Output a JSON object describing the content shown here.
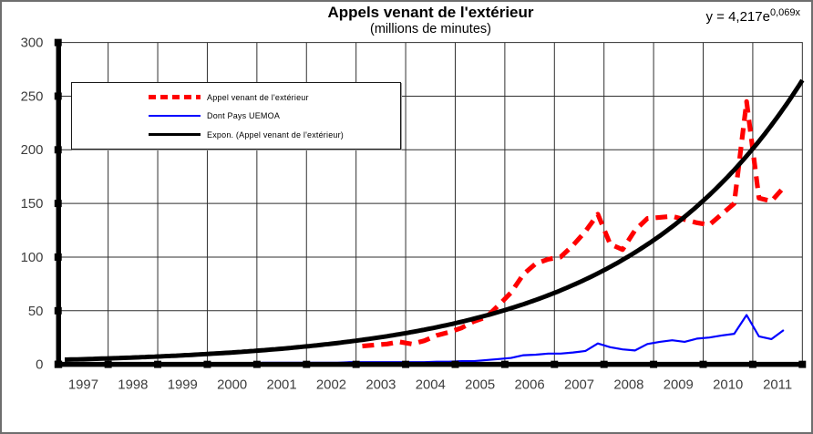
{
  "frame": {
    "border_color": "#6e6e6e",
    "background_color": "#ffffff",
    "grid_color": "#2f2f2f",
    "tick_label_color": "#3d3d3d"
  },
  "header": {
    "title": "Appels venant de l'extérieur",
    "subtitle": "(millions de minutes)",
    "trendline_equation_base": "y = 4,217e",
    "trendline_equation_exponent": "0,069x"
  },
  "legend": {
    "position": "top-left-inside",
    "items": [
      {
        "label": "Appel venant de l'extérieur",
        "swatch": "red-dashed-line",
        "color": "#ff0000"
      },
      {
        "label": "Dont Pays  UEMOA",
        "swatch": "blue-solid-line",
        "color": "#0000ff"
      },
      {
        "label": "Expon. (Appel venant de l'extérieur)",
        "swatch": "black-solid-line",
        "color": "#000000"
      }
    ]
  },
  "chart_data": {
    "type": "line",
    "title": "Appels venant de l'extérieur",
    "subtitle": "(millions de minutes)",
    "xlabel": "",
    "ylabel": "",
    "grid": true,
    "x_axis": {
      "unit": "year",
      "labels": [
        "1997",
        "1998",
        "1999",
        "2000",
        "2001",
        "2002",
        "2003",
        "2004",
        "2005",
        "2006",
        "2007",
        "2008",
        "2009",
        "2010",
        "2011"
      ],
      "quarters_total": 60
    },
    "y_axis": {
      "min": 0,
      "max": 300,
      "tick_step": 50,
      "ticks": [
        0,
        50,
        100,
        150,
        200,
        250,
        300
      ]
    },
    "series": [
      {
        "name": "Appel venant de l'extérieur",
        "color": "#ff0000",
        "style": "dashed",
        "frequency": "quarterly",
        "start": "2003-Q1",
        "start_quarter_index": 24,
        "values": [
          17,
          18,
          19,
          21,
          19,
          22,
          27,
          30,
          34,
          40,
          44,
          55,
          67,
          84,
          94,
          98,
          100,
          111,
          124,
          140,
          112,
          107,
          125,
          136,
          137,
          138,
          135,
          132,
          130,
          140,
          150,
          245,
          155,
          152,
          165
        ]
      },
      {
        "name": "Dont Pays UEMOA",
        "color": "#0000ff",
        "style": "solid",
        "frequency": "quarterly",
        "start": "1997-Q1",
        "start_quarter_index": 0,
        "values": [
          1,
          1,
          1,
          1,
          1,
          1,
          1,
          1,
          1,
          1,
          1,
          1,
          1,
          1,
          1,
          1,
          1.5,
          1.5,
          1.5,
          1.5,
          1.5,
          1.5,
          1.5,
          2,
          2,
          2,
          2,
          2,
          2,
          2,
          2.5,
          2.5,
          3,
          3,
          4,
          5,
          6,
          8.5,
          9,
          10,
          10,
          11,
          12.5,
          19.5,
          16,
          14,
          13,
          19,
          21,
          22.5,
          21,
          24,
          25,
          27,
          28.5,
          46,
          26,
          23.5,
          32
        ]
      },
      {
        "name": "Expon. (Appel venant de l'extérieur)",
        "color": "#000000",
        "style": "solid-thick",
        "kind": "exponential_trendline",
        "formula": {
          "a": 4.217,
          "b": 0.069,
          "x_unit": "quarter_index_from_1997Q1",
          "domain": [
            0.5,
            60
          ]
        }
      }
    ]
  }
}
